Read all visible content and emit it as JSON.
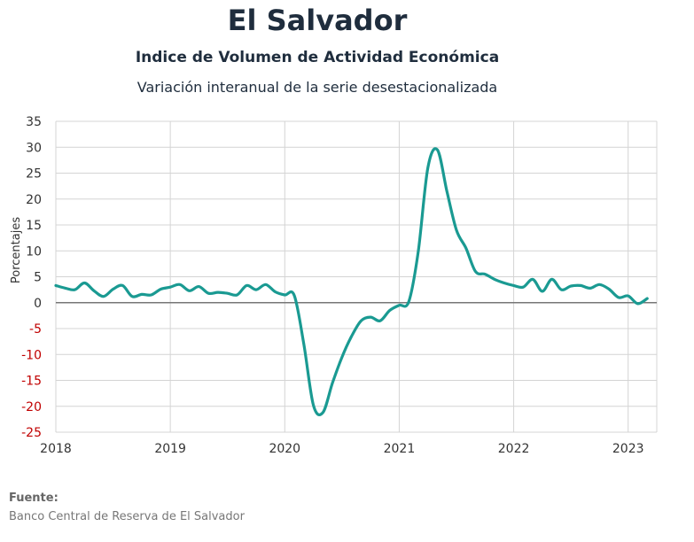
{
  "header": {
    "title": "El Salvador",
    "subtitle": "Indice de Volumen de  Actividad Económica",
    "subtitle2": "Variación interanual de la serie desestacionalizada"
  },
  "source": {
    "label": "Fuente:",
    "text": "Banco Central de Reserva de El Salvador"
  },
  "chart_data": {
    "type": "line",
    "ylabel": "Porcentajes",
    "xlabel": "",
    "ylim": [
      -25,
      35
    ],
    "xlim": [
      "2018-01",
      "2023-04"
    ],
    "yticks": [
      35,
      30,
      25,
      20,
      15,
      10,
      5,
      0,
      -5,
      -10,
      -15,
      -20,
      -25
    ],
    "xticks": [
      "2018",
      "2019",
      "2020",
      "2021",
      "2022",
      "2023"
    ],
    "grid": true,
    "colors": {
      "line": "#1a9a92",
      "negative_tick": "#c00000",
      "positive_tick": "#333333",
      "grid": "#d4d4d4",
      "zero_line": "#777777"
    },
    "series": [
      {
        "x": [
          "2018-01",
          "2018-02",
          "2018-03",
          "2018-04",
          "2018-05",
          "2018-06",
          "2018-07",
          "2018-08",
          "2018-09",
          "2018-10",
          "2018-11",
          "2018-12",
          "2019-01",
          "2019-02",
          "2019-03",
          "2019-04",
          "2019-05",
          "2019-06",
          "2019-07",
          "2019-08",
          "2019-09",
          "2019-10",
          "2019-11",
          "2019-12",
          "2020-01",
          "2020-02",
          "2020-03",
          "2020-04",
          "2020-05",
          "2020-06",
          "2020-07",
          "2020-08",
          "2020-09",
          "2020-10",
          "2020-11",
          "2020-12",
          "2021-01",
          "2021-02",
          "2021-03",
          "2021-04",
          "2021-05",
          "2021-06",
          "2021-07",
          "2021-08",
          "2021-09",
          "2021-10",
          "2021-11",
          "2021-12",
          "2022-01",
          "2022-02",
          "2022-03",
          "2022-04",
          "2022-05",
          "2022-06",
          "2022-07",
          "2022-08",
          "2022-09",
          "2022-10",
          "2022-11",
          "2022-12",
          "2023-01",
          "2023-02",
          "2023-03"
        ],
        "values": [
          3.3,
          2.8,
          2.5,
          3.8,
          2.3,
          1.2,
          2.6,
          3.3,
          1.2,
          1.6,
          1.5,
          2.6,
          3.0,
          3.5,
          2.3,
          3.1,
          1.8,
          2.0,
          1.8,
          1.5,
          3.3,
          2.5,
          3.5,
          2.1,
          1.5,
          1.4,
          -8.0,
          -19.8,
          -21.2,
          -15.5,
          -10.5,
          -6.5,
          -3.5,
          -2.8,
          -3.5,
          -1.5,
          -0.5,
          0.2,
          10.0,
          26.0,
          29.5,
          21.5,
          14.0,
          10.5,
          6.0,
          5.5,
          4.5,
          3.8,
          3.3,
          3.0,
          4.5,
          2.2,
          4.5,
          2.5,
          3.2,
          3.3,
          2.8,
          3.5,
          2.6,
          1.0,
          1.3,
          -0.2,
          0.8
        ]
      }
    ]
  }
}
